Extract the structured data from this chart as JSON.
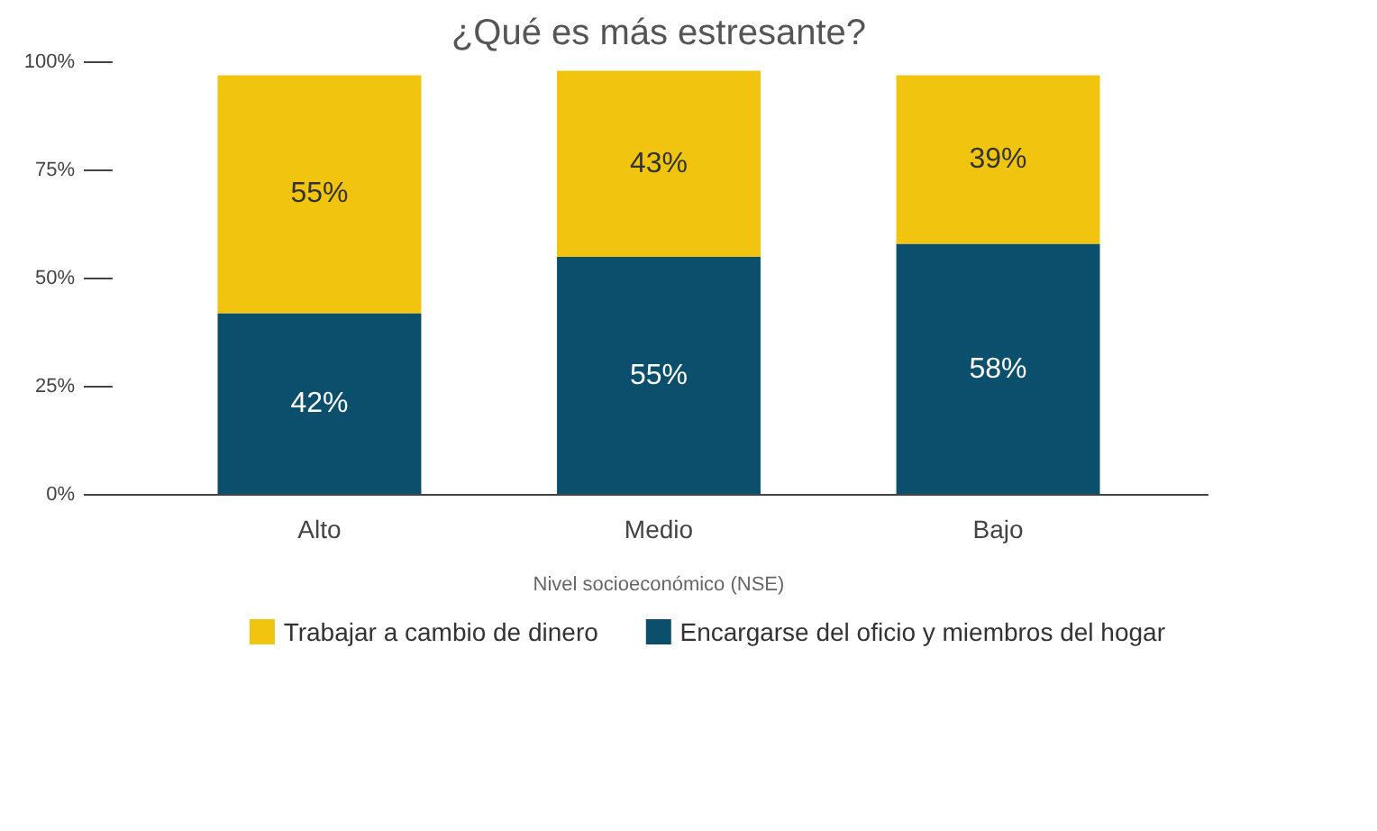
{
  "chart_data": {
    "type": "bar",
    "title": "¿Qué es más estresante?",
    "xlabel": "Nivel socioeconómico (NSE)",
    "categories": [
      "Alto",
      "Medio",
      "Bajo"
    ],
    "stacked": true,
    "series": [
      {
        "name": "Encargarse del oficio y miembros del hogar",
        "color": "#0b4f6c",
        "values": [
          42,
          55,
          58
        ],
        "value_labels": [
          "42%",
          "55%",
          "58%"
        ]
      },
      {
        "name": "Trabajar a cambio de dinero",
        "color": "#f1c40f",
        "values": [
          55,
          43,
          39
        ],
        "value_labels": [
          "55%",
          "43%",
          "39%"
        ]
      }
    ],
    "ylim": [
      0,
      100
    ],
    "yticks": [
      {
        "value": 0,
        "label": "0%"
      },
      {
        "value": 25,
        "label": "25%"
      },
      {
        "value": 50,
        "label": "50%"
      },
      {
        "value": 75,
        "label": "75%"
      },
      {
        "value": 100,
        "label": "100%"
      }
    ],
    "grid": false,
    "legend": "bottom"
  }
}
